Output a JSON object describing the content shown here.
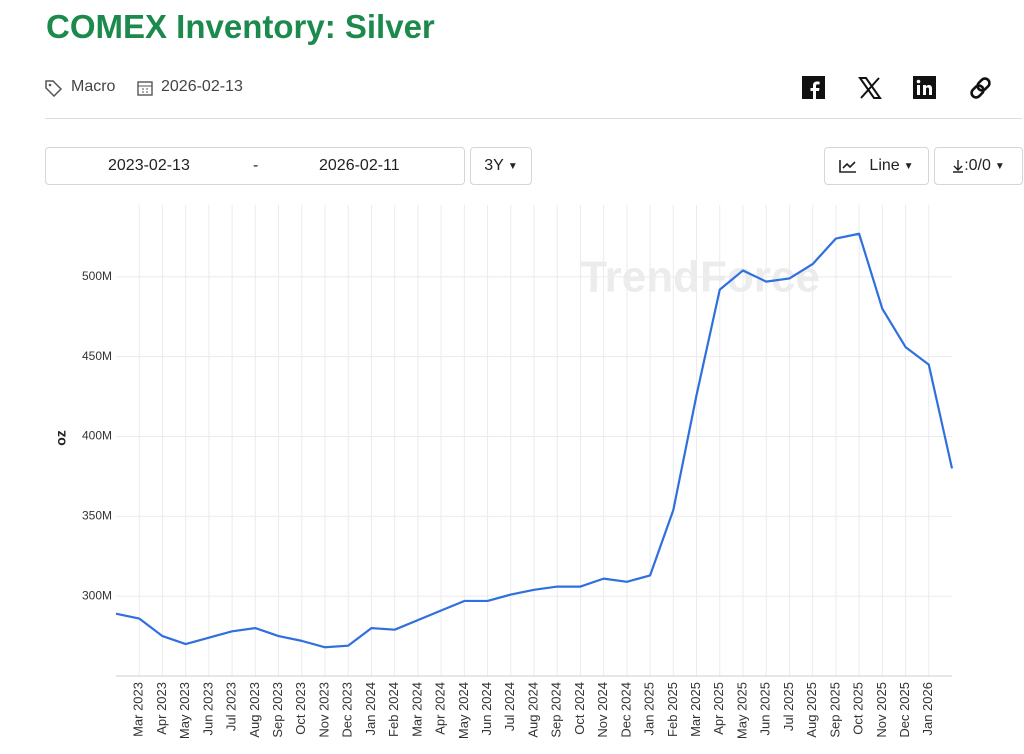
{
  "header": {
    "title": "COMEX Inventory: Silver",
    "tag": "Macro",
    "date": "2026-02-13"
  },
  "controls": {
    "start_date": "2023-02-13",
    "separator": "-",
    "end_date": "2026-02-11",
    "range": "3Y",
    "chart_type": "Line",
    "download": ":0/0"
  },
  "chart_data": {
    "type": "line",
    "watermark": "TrendForce",
    "y_label": "oz",
    "categories": [
      null,
      "Mar 2023",
      "Apr 2023",
      "May 2023",
      "Jun 2023",
      "Jul 2023",
      "Aug 2023",
      "Sep 2023",
      "Oct 2023",
      "Nov 2023",
      "Dec 2023",
      "Jan 2024",
      "Feb 2024",
      "Mar 2024",
      "Apr 2024",
      "May 2024",
      "Jun 2024",
      "Jul 2024",
      "Aug 2024",
      "Sep 2024",
      "Oct 2024",
      "Nov 2024",
      "Dec 2024",
      "Jan 2025",
      "Feb 2025",
      "Mar 2025",
      "Apr 2025",
      "May 2025",
      "Jun 2025",
      "Jul 2025",
      "Aug 2025",
      "Sep 2025",
      "Oct 2025",
      "Nov 2025",
      "Dec 2025",
      "Jan 2026",
      null
    ],
    "series": [
      {
        "name": "COMEX Inventory: Silver",
        "color": "#2f6fde",
        "values": [
          289000000,
          286000000,
          275000000,
          270000000,
          274000000,
          278000000,
          280000000,
          275000000,
          272000000,
          268000000,
          269000000,
          280000000,
          279000000,
          285000000,
          291000000,
          297000000,
          297000000,
          301000000,
          304000000,
          306000000,
          306000000,
          311000000,
          309000000,
          313000000,
          354000000,
          426000000,
          492000000,
          504000000,
          497000000,
          499000000,
          508000000,
          524000000,
          527000000,
          480000000,
          456000000,
          445000000,
          380000000
        ]
      }
    ],
    "ylim": [
      250000000,
      545000000
    ],
    "yticks": [
      {
        "value": 300000000,
        "label": "300M"
      },
      {
        "value": 350000000,
        "label": "350M"
      },
      {
        "value": 400000000,
        "label": "400M"
      },
      {
        "value": 450000000,
        "label": "450M"
      },
      {
        "value": 500000000,
        "label": "500M"
      }
    ],
    "grid": true
  }
}
